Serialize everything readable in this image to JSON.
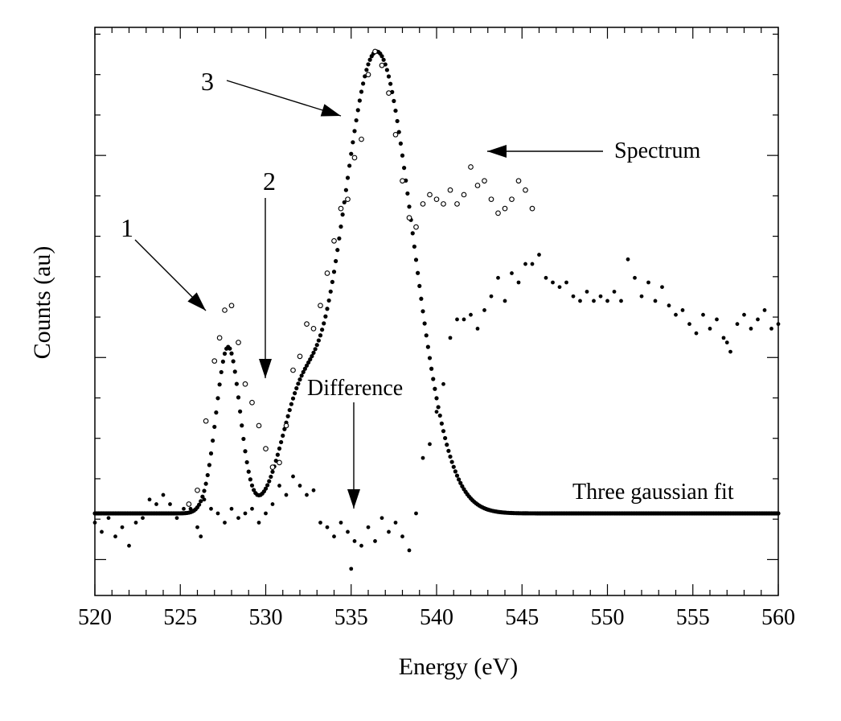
{
  "chart_data": {
    "type": "scatter",
    "xlabel": "Energy (eV)",
    "ylabel": "Counts (au)",
    "xlim": [
      520,
      560
    ],
    "ylim": [
      -0.12,
      1.05
    ],
    "x_ticks": [
      "520",
      "525",
      "530",
      "535",
      "540",
      "545",
      "550",
      "555",
      "560"
    ],
    "grid": false,
    "annotations": {
      "peak1": "1",
      "peak2": "2",
      "peak3": "3",
      "spectrum": "Spectrum",
      "difference": "Difference",
      "fit": "Three gaussian fit"
    },
    "series": [
      {
        "name": "Spectrum",
        "marker": "open circle",
        "x": [
          525.5,
          526.0,
          526.5,
          527.0,
          527.3,
          527.6,
          528.0,
          528.4,
          528.8,
          529.2,
          529.6,
          530.0,
          530.4,
          530.8,
          531.2,
          531.6,
          532.0,
          532.4,
          532.8,
          533.2,
          533.6,
          534.0,
          534.4,
          534.8,
          535.2,
          535.6,
          536.0,
          536.4,
          536.8,
          537.2,
          537.6,
          538.0,
          538.4,
          538.8,
          539.2,
          539.6,
          540.0,
          540.4,
          540.8,
          541.2,
          541.6,
          542.0,
          542.4,
          542.8,
          543.2,
          543.6,
          544.0,
          544.4,
          544.8,
          545.2,
          545.6
        ],
        "y": [
          0.02,
          0.05,
          0.2,
          0.33,
          0.38,
          0.44,
          0.45,
          0.37,
          0.28,
          0.24,
          0.19,
          0.14,
          0.1,
          0.11,
          0.19,
          0.31,
          0.34,
          0.41,
          0.4,
          0.45,
          0.52,
          0.59,
          0.66,
          0.68,
          0.77,
          0.81,
          0.95,
          1.0,
          0.97,
          0.91,
          0.82,
          0.72,
          0.64,
          0.62,
          0.67,
          0.69,
          0.68,
          0.67,
          0.7,
          0.67,
          0.69,
          0.75,
          0.71,
          0.72,
          0.68,
          0.65,
          0.66,
          0.68,
          0.72,
          0.7,
          0.66
        ]
      },
      {
        "name": "Difference",
        "marker": "filled dot",
        "x": [
          520.0,
          520.4,
          520.8,
          521.2,
          521.6,
          522.0,
          522.4,
          522.8,
          523.2,
          523.6,
          524.0,
          524.4,
          524.8,
          525.2,
          525.6,
          526.0,
          526.4,
          526.8,
          527.2,
          527.6,
          528.0,
          528.4,
          528.8,
          529.2,
          529.6,
          530.0,
          530.4,
          530.8,
          531.2,
          531.6,
          532.0,
          532.4,
          532.8,
          533.2,
          533.6,
          534.0,
          534.4,
          534.8,
          535.2,
          535.6,
          536.0,
          536.4,
          536.8,
          537.2,
          537.6,
          538.0,
          538.4,
          538.8,
          539.2,
          539.6,
          540.0,
          540.4,
          540.8,
          541.2,
          541.6,
          542.0,
          542.4,
          542.8,
          543.2,
          543.6,
          544.0,
          544.4,
          544.8,
          545.2,
          545.6,
          546.0,
          546.4,
          546.8,
          547.2,
          547.6,
          548.0,
          548.4,
          548.8,
          549.2,
          549.6,
          550.0,
          550.4,
          550.8,
          551.2,
          551.6,
          552.0,
          552.4,
          552.8,
          553.2,
          553.6,
          554.0,
          554.4,
          554.8,
          555.2,
          555.6,
          556.0,
          556.4,
          556.8,
          557.2,
          557.6,
          558.0,
          558.4,
          558.8,
          559.2,
          559.6,
          560.0
        ],
        "y": [
          -0.02,
          -0.04,
          -0.01,
          -0.05,
          -0.03,
          -0.07,
          -0.02,
          -0.01,
          0.03,
          0.02,
          0.04,
          0.02,
          -0.01,
          0.01,
          0.01,
          -0.03,
          0.03,
          0.01,
          0.0,
          -0.02,
          0.01,
          -0.01,
          0.0,
          0.01,
          -0.02,
          0.0,
          0.02,
          0.06,
          0.04,
          0.08,
          0.06,
          0.04,
          0.05,
          -0.02,
          -0.03,
          -0.05,
          -0.02,
          -0.04,
          -0.06,
          -0.07,
          -0.03,
          -0.06,
          -0.01,
          -0.04,
          -0.02,
          -0.05,
          -0.08,
          0.0,
          0.12,
          0.15,
          0.22,
          0.28,
          0.38,
          0.42,
          0.42,
          0.43,
          0.4,
          0.44,
          0.47,
          0.51,
          0.46,
          0.52,
          0.5,
          0.54,
          0.54,
          0.56,
          0.51,
          0.5,
          0.49,
          0.5,
          0.47,
          0.46,
          0.48,
          0.46,
          0.47,
          0.46,
          0.48,
          0.46,
          0.55,
          0.51,
          0.47,
          0.5,
          0.46,
          0.49,
          0.45,
          0.43,
          0.44,
          0.41,
          0.39,
          0.43,
          0.4,
          0.42,
          0.38,
          0.35,
          0.41,
          0.43,
          0.4,
          0.42,
          0.44,
          0.4,
          0.41
        ],
        "outliers": [
          [
            535.0,
            -0.12
          ],
          [
            557.0,
            0.37
          ],
          [
            526.2,
            -0.05
          ]
        ]
      },
      {
        "name": "Three gaussian fit",
        "marker": "filled dot",
        "model": "gaussian-sum",
        "components": [
          {
            "center": 527.8,
            "amplitude": 0.36,
            "width": 0.7
          },
          {
            "center": 531.9,
            "amplitude": 0.19,
            "width": 1.1
          },
          {
            "center": 536.5,
            "amplitude": 1.0,
            "width": 2.1
          }
        ],
        "x_range": [
          520,
          560
        ]
      }
    ]
  }
}
